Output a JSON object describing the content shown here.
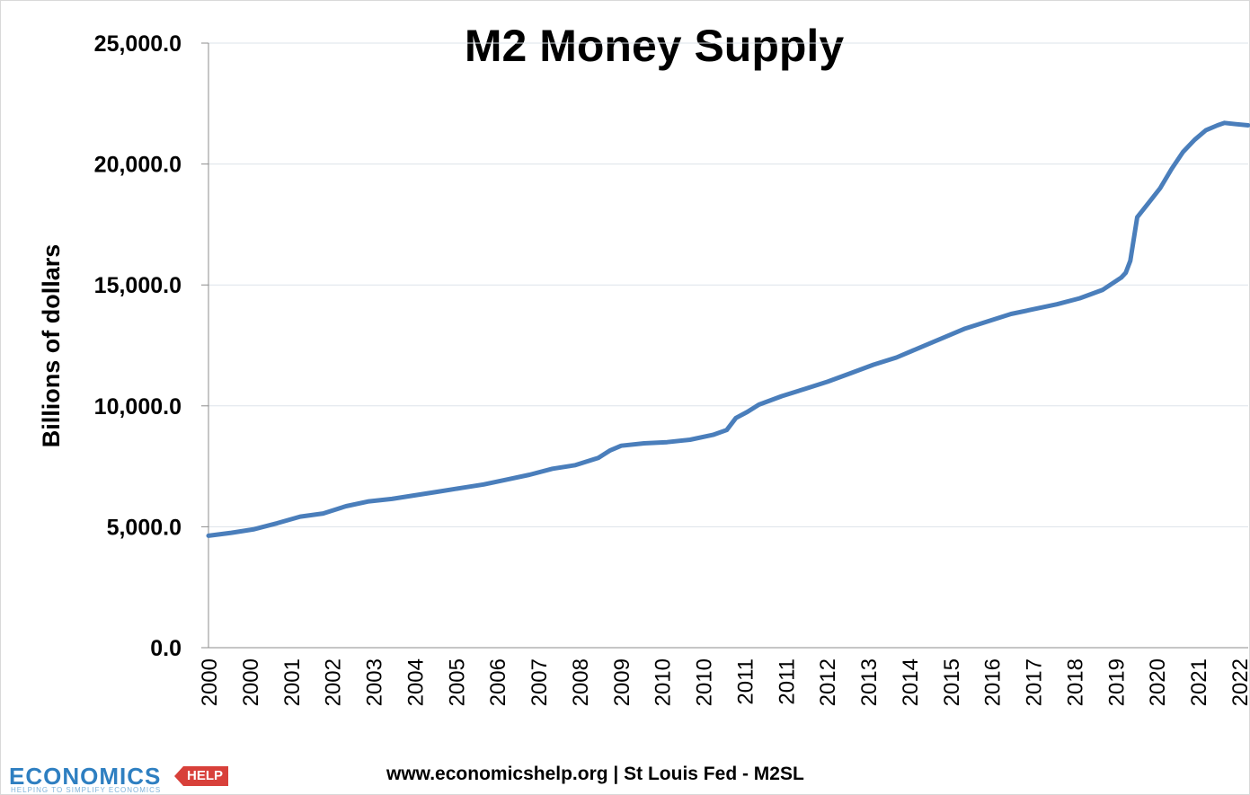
{
  "chart_data": {
    "type": "line",
    "title": "M2 Money Supply",
    "ylabel": "Billions of dollars",
    "xlabel": "",
    "ylim": [
      0,
      25000
    ],
    "y_ticks": [
      "25,000.0",
      "20,000.0",
      "15,000.0",
      "10,000.0",
      "5,000.0",
      "0.0"
    ],
    "x_tick_labels": [
      "2000",
      "2000",
      "2001",
      "2002",
      "2003",
      "2004",
      "2005",
      "2006",
      "2007",
      "2008",
      "2009",
      "2010",
      "2010",
      "2011",
      "2011",
      "2012",
      "2013",
      "2014",
      "2015",
      "2016",
      "2017",
      "2018",
      "2019",
      "2020",
      "2021",
      "2022"
    ],
    "grid": "horizontal",
    "legend": "none",
    "line_color": "#4a7ebb",
    "series": [
      {
        "x": [
          2000.0,
          2000.5,
          2001.0,
          2001.5,
          2002.0,
          2002.5,
          2003.0,
          2003.5,
          2004.0,
          2004.5,
          2005.0,
          2005.5,
          2006.0,
          2006.5,
          2007.0,
          2007.5,
          2008.0,
          2008.5,
          2008.75,
          2009.0,
          2009.5,
          2010.0,
          2010.5,
          2011.0,
          2011.3,
          2011.5,
          2011.75,
          2012.0,
          2012.5,
          2013.0,
          2013.5,
          2014.0,
          2014.5,
          2015.0,
          2015.5,
          2016.0,
          2016.5,
          2017.0,
          2017.5,
          2018.0,
          2018.5,
          2019.0,
          2019.5,
          2019.9,
          2020.0,
          2020.1,
          2020.25,
          2020.5,
          2020.75,
          2021.0,
          2021.25,
          2021.5,
          2021.75,
          2022.0,
          2022.15,
          2022.4,
          2022.67
        ],
        "values": [
          4630,
          4750,
          4900,
          5150,
          5420,
          5550,
          5850,
          6050,
          6150,
          6300,
          6450,
          6600,
          6750,
          6950,
          7150,
          7400,
          7550,
          7850,
          8150,
          8350,
          8450,
          8500,
          8600,
          8800,
          9000,
          9500,
          9750,
          10050,
          10400,
          10700,
          11000,
          11350,
          11700,
          12000,
          12400,
          12800,
          13200,
          13500,
          13800,
          14000,
          14200,
          14450,
          14800,
          15300,
          15500,
          16000,
          17800,
          18400,
          19000,
          19800,
          20500,
          21000,
          21400,
          21600,
          21700,
          21650,
          21600
        ]
      }
    ]
  },
  "footer": {
    "source": "www.economicshelp.org | St Louis Fed - M2SL"
  },
  "logo": {
    "word": "ECONOMICS",
    "tag": "HELP",
    "tagline": "HELPING TO SIMPLIFY ECONOMICS"
  }
}
